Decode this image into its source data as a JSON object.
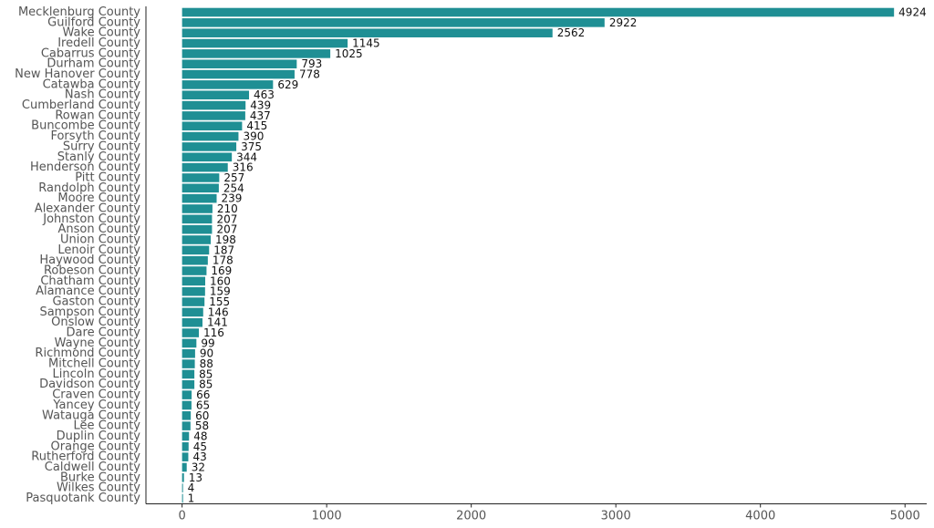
{
  "chart_data": {
    "type": "bar",
    "orientation": "horizontal",
    "title": "",
    "xlabel": "",
    "ylabel": "",
    "xlim": [
      -250,
      5150
    ],
    "xticks": [
      0,
      1000,
      2000,
      3000,
      4000,
      5000
    ],
    "grid": false,
    "bar_color": "#1f8f94",
    "categories": [
      "Mecklenburg County",
      "Guilford County",
      "Wake County",
      "Iredell County",
      "Cabarrus County",
      "Durham County",
      "New Hanover County",
      "Catawba County",
      "Nash County",
      "Cumberland County",
      "Rowan County",
      "Buncombe County",
      "Forsyth County",
      "Surry County",
      "Stanly County",
      "Henderson County",
      "Pitt County",
      "Randolph County",
      "Moore County",
      "Alexander County",
      "Johnston County",
      "Anson County",
      "Union County",
      "Lenoir County",
      "Haywood County",
      "Robeson County",
      "Chatham County",
      "Alamance County",
      "Gaston County",
      "Sampson County",
      "Onslow County",
      "Dare County",
      "Wayne County",
      "Richmond County",
      "Mitchell County",
      "Lincoln County",
      "Davidson County",
      "Craven County",
      "Yancey County",
      "Watauga County",
      "Lee County",
      "Duplin County",
      "Orange County",
      "Rutherford County",
      "Caldwell County",
      "Burke County",
      "Wilkes County",
      "Pasquotank County"
    ],
    "values": [
      4924,
      2922,
      2562,
      1145,
      1025,
      793,
      778,
      629,
      463,
      439,
      437,
      415,
      390,
      375,
      344,
      316,
      257,
      254,
      239,
      210,
      207,
      207,
      198,
      187,
      178,
      169,
      160,
      159,
      155,
      146,
      141,
      116,
      99,
      90,
      88,
      85,
      85,
      66,
      65,
      60,
      58,
      48,
      45,
      43,
      32,
      13,
      4,
      1
    ]
  }
}
